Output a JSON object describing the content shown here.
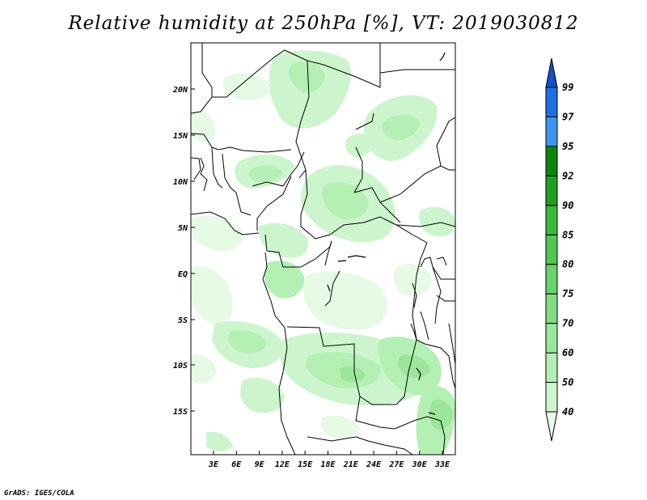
{
  "title": "Relative humidity at 250hPa [%], VT: 2019030812",
  "credit": "GrADS: IGES/COLA",
  "map": {
    "lat_labels": [
      "20N",
      "15N",
      "10N",
      "5N",
      "EQ",
      "5S",
      "10S",
      "15S"
    ],
    "lon_labels": [
      "3E",
      "6E",
      "9E",
      "12E",
      "15E",
      "18E",
      "21E",
      "24E",
      "27E",
      "30E",
      "33E"
    ]
  },
  "colorbar": {
    "levels": [
      "40",
      "50",
      "60",
      "70",
      "75",
      "80",
      "85",
      "90",
      "92",
      "95",
      "97",
      "99"
    ],
    "colors": [
      "#e6fae6",
      "#cdf5cd",
      "#b4f0b4",
      "#9be69b",
      "#82dc82",
      "#69d269",
      "#50c850",
      "#37b937",
      "#1ea01e",
      "#0a870a",
      "#3c96f0",
      "#1e6ee6",
      "#1450c8"
    ]
  }
}
